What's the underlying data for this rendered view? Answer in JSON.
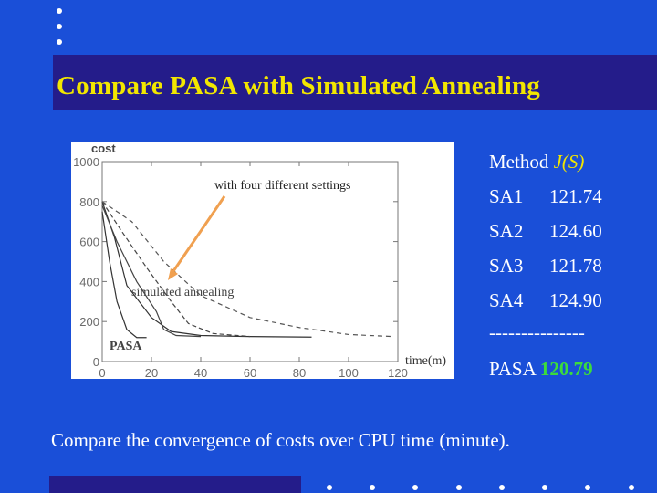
{
  "slide": {
    "title": "Compare PASA with Simulated Annealing",
    "caption": "Compare the convergence of costs over CPU time (minute)."
  },
  "figure": {
    "ylabel": "cost",
    "xlabel": "time(m)",
    "annotation_top": "with four different settings",
    "annotation_sa": "simulated annealing",
    "annotation_pasa": "PASA",
    "xticks": [
      "0",
      "20",
      "40",
      "60",
      "80",
      "100",
      "120"
    ],
    "yticks": [
      "0",
      "200",
      "400",
      "600",
      "800",
      "1000"
    ]
  },
  "results": {
    "header_method": "Method",
    "header_j": "J(S)",
    "rows": [
      {
        "label": "SA1",
        "value": "121.74"
      },
      {
        "label": "SA2",
        "value": "124.60"
      },
      {
        "label": "SA3",
        "value": "121.78"
      },
      {
        "label": "SA4",
        "value": "124.90"
      }
    ],
    "separator": "---------------",
    "pasa_label": "PASA",
    "pasa_value": "120.79"
  },
  "colors": {
    "background": "#1a4fd8",
    "title_bar": "#241c8a",
    "title_text": "#f2e600",
    "arrow": "#f0a050",
    "pasa_value": "#3cdc3c"
  },
  "chart_data": {
    "type": "line",
    "xlabel": "time(m)",
    "ylabel": "cost",
    "xlim": [
      0,
      120
    ],
    "ylim": [
      0,
      1000
    ],
    "grid": false,
    "series": [
      {
        "name": "PASA",
        "x": [
          0,
          3,
          6,
          10,
          14,
          18
        ],
        "y": [
          750,
          500,
          300,
          160,
          120,
          120
        ]
      },
      {
        "x": [
          0,
          5,
          10,
          20,
          28,
          40,
          60,
          85
        ],
        "y": [
          800,
          620,
          380,
          220,
          150,
          130,
          125,
          122
        ]
      },
      {
        "x": [
          0,
          8,
          18,
          28,
          35,
          45,
          60
        ],
        "y": [
          800,
          650,
          470,
          300,
          190,
          140,
          125
        ]
      },
      {
        "x": [
          0,
          6,
          14,
          22,
          25,
          30,
          40
        ],
        "y": [
          780,
          600,
          400,
          250,
          160,
          130,
          125
        ]
      },
      {
        "x": [
          0,
          12,
          25,
          40,
          60,
          80,
          100,
          118
        ],
        "y": [
          800,
          700,
          500,
          330,
          220,
          170,
          135,
          125
        ]
      }
    ]
  }
}
